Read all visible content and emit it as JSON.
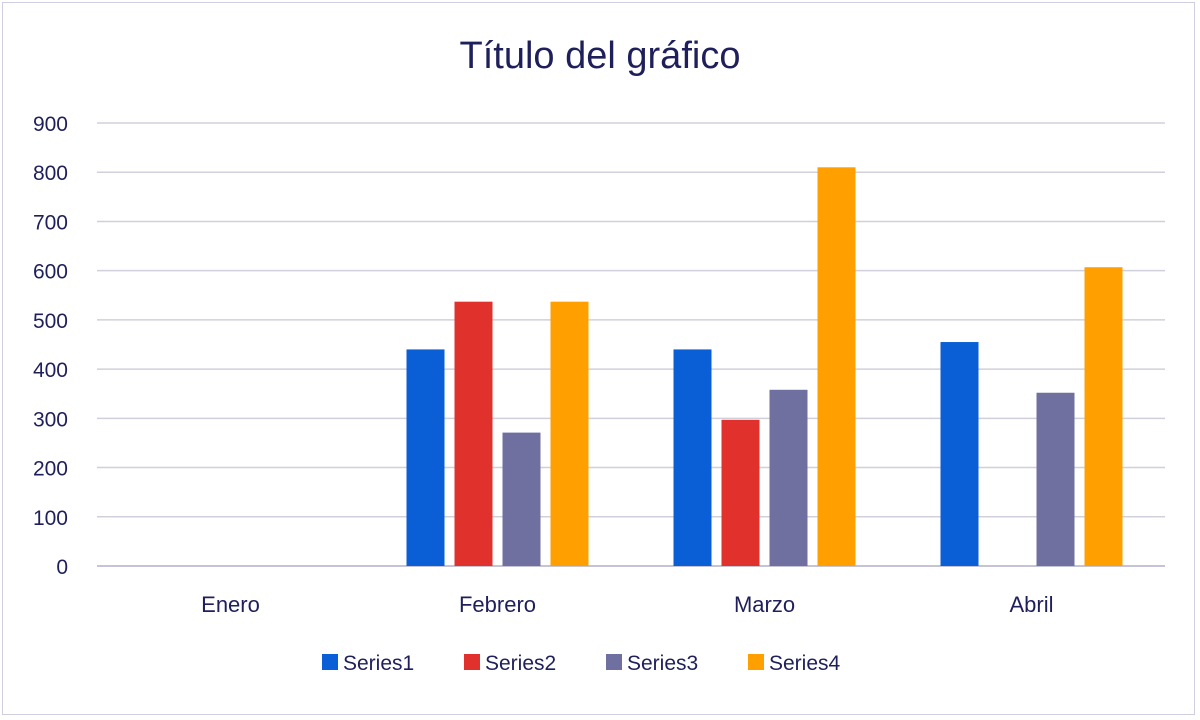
{
  "chart_data": {
    "type": "bar",
    "title": "Título del gráfico",
    "xlabel": "",
    "ylabel": "",
    "categories": [
      "Enero",
      "Febrero",
      "Marzo",
      "Abril"
    ],
    "series": [
      {
        "name": "Series1",
        "color": "#0a5fd6",
        "values": [
          null,
          440,
          440,
          455
        ]
      },
      {
        "name": "Series2",
        "color": "#e0312d",
        "values": [
          null,
          537,
          297,
          null
        ]
      },
      {
        "name": "Series3",
        "color": "#6f70a0",
        "values": [
          null,
          271,
          358,
          352
        ]
      },
      {
        "name": "Series4",
        "color": "#ffa000",
        "values": [
          null,
          537,
          810,
          607
        ]
      }
    ],
    "ylim": [
      0,
      900
    ],
    "yticks": [
      0,
      100,
      200,
      300,
      400,
      500,
      600,
      700,
      800,
      900
    ],
    "grid": true,
    "legend_position": "bottom"
  }
}
